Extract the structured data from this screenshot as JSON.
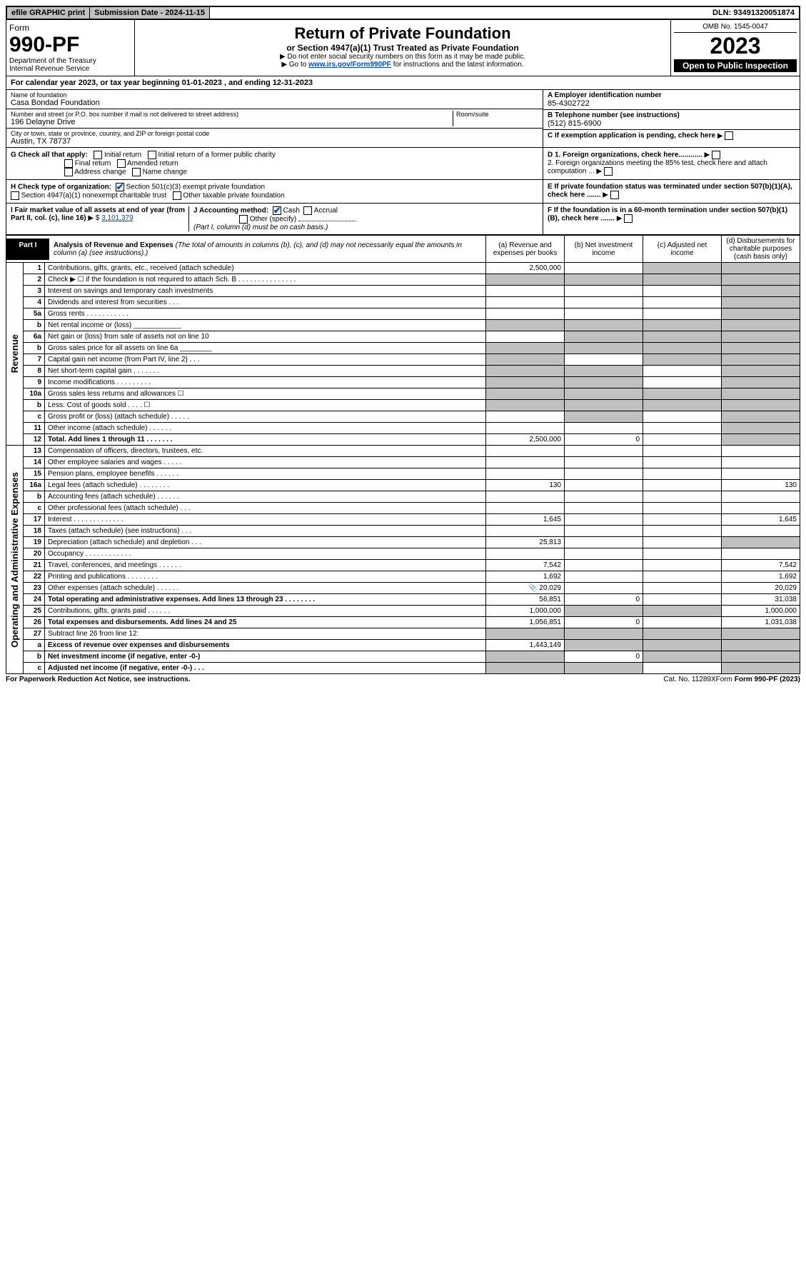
{
  "topbar": {
    "efile": "efile GRAPHIC print",
    "submission": "Submission Date - 2024-11-15",
    "dln": "DLN: 93491320051874"
  },
  "header": {
    "form_word": "Form",
    "form_no": "990-PF",
    "dept1": "Department of the Treasury",
    "dept2": "Internal Revenue Service",
    "title": "Return of Private Foundation",
    "subtitle": "or Section 4947(a)(1) Trust Treated as Private Foundation",
    "instr1": "▶ Do not enter social security numbers on this form as it may be made public.",
    "instr2_pre": "▶ Go to ",
    "instr2_link": "www.irs.gov/Form990PF",
    "instr2_post": " for instructions and the latest information.",
    "omb": "OMB No. 1545-0047",
    "year": "2023",
    "open": "Open to Public Inspection"
  },
  "cal_year": "For calendar year 2023, or tax year beginning 01-01-2023              , and ending 12-31-2023",
  "idblock": {
    "name_label": "Name of foundation",
    "name": "Casa Bondad Foundation",
    "addr_label": "Number and street (or P.O. box number if mail is not delivered to street address)",
    "addr": "196 Delayne Drive",
    "room_label": "Room/suite",
    "city_label": "City or town, state or province, country, and ZIP or foreign postal code",
    "city": "Austin, TX  78737",
    "a_label": "A Employer identification number",
    "a_val": "85-4302722",
    "b_label": "B Telephone number (see instructions)",
    "b_val": "(512) 815-6900",
    "c_label": "C If exemption application is pending, check here",
    "d1": "D 1. Foreign organizations, check here............",
    "d2": "2. Foreign organizations meeting the 85% test, check here and attach computation ...",
    "e": "E  If private foundation status was terminated under section 507(b)(1)(A), check here .......",
    "f": "F  If the foundation is in a 60-month termination under section 507(b)(1)(B), check here .......",
    "g_label": "G Check all that apply:",
    "g_opts": [
      "Initial return",
      "Initial return of a former public charity",
      "Final return",
      "Amended return",
      "Address change",
      "Name change"
    ],
    "h_label": "H Check type of organization:",
    "h_opts": [
      "Section 501(c)(3) exempt private foundation",
      "Section 4947(a)(1) nonexempt charitable trust",
      "Other taxable private foundation"
    ],
    "i_label": "I Fair market value of all assets at end of year (from Part II, col. (c), line 16)",
    "i_val": "3,101,379",
    "j_label": "J Accounting method:",
    "j_opts": [
      "Cash",
      "Accrual",
      "Other (specify)"
    ],
    "j_note": "(Part I, column (d) must be on cash basis.)"
  },
  "part1": {
    "tag": "Part I",
    "title": "Analysis of Revenue and Expenses",
    "title_note": "(The total of amounts in columns (b), (c), and (d) may not necessarily equal the amounts in column (a) (see instructions).)",
    "col_a": "(a)   Revenue and expenses per books",
    "col_b": "(b)   Net investment income",
    "col_c": "(c)   Adjusted net income",
    "col_d": "(d)   Disbursements for charitable purposes (cash basis only)"
  },
  "sections": {
    "revenue": "Revenue",
    "expenses": "Operating and Administrative Expenses"
  },
  "rows": [
    {
      "n": "1",
      "d": "Contributions, gifts, grants, etc., received (attach schedule)",
      "a": "2,500,000",
      "b": "",
      "c": "",
      "dd": "",
      "gb": false,
      "gc": true,
      "gd": true
    },
    {
      "n": "2",
      "d": "Check ▶ ☐ if the foundation is not required to attach Sch. B    .  .  .  .  .  .  .  .  .  .  .  .  .  .  .",
      "a": "",
      "b": "",
      "c": "",
      "dd": "",
      "ga": true,
      "gb": true,
      "gc": true,
      "gd": true
    },
    {
      "n": "3",
      "d": "Interest on savings and temporary cash investments",
      "a": "",
      "b": "",
      "c": "",
      "dd": "",
      "gd": true
    },
    {
      "n": "4",
      "d": "Dividends and interest from securities    .   .   .",
      "a": "",
      "b": "",
      "c": "",
      "dd": "",
      "gd": true
    },
    {
      "n": "5a",
      "d": "Gross rents    .   .   .   .   .   .   .   .   .   .   .",
      "a": "",
      "b": "",
      "c": "",
      "dd": "",
      "gd": true
    },
    {
      "n": "b",
      "d": "Net rental income or (loss)   ____________",
      "a": "",
      "b": "",
      "c": "",
      "dd": "",
      "ga": true,
      "gb": true,
      "gc": true,
      "gd": true
    },
    {
      "n": "6a",
      "d": "Net gain or (loss) from sale of assets not on line 10",
      "a": "",
      "b": "",
      "c": "",
      "dd": "",
      "gb": true,
      "gc": true,
      "gd": true
    },
    {
      "n": "b",
      "d": "Gross sales price for all assets on line 6a ________",
      "a": "",
      "b": "",
      "c": "",
      "dd": "",
      "ga": true,
      "gb": true,
      "gc": true,
      "gd": true
    },
    {
      "n": "7",
      "d": "Capital gain net income (from Part IV, line 2)   .   .   .",
      "a": "",
      "b": "",
      "c": "",
      "dd": "",
      "ga": true,
      "gc": true,
      "gd": true
    },
    {
      "n": "8",
      "d": "Net short-term capital gain   .   .   .   .   .   .   .",
      "a": "",
      "b": "",
      "c": "",
      "dd": "",
      "ga": true,
      "gb": true,
      "gd": true
    },
    {
      "n": "9",
      "d": "Income modifications  .   .   .   .   .   .   .   .   .",
      "a": "",
      "b": "",
      "c": "",
      "dd": "",
      "ga": true,
      "gb": true,
      "gd": true
    },
    {
      "n": "10a",
      "d": "Gross sales less returns and allowances  ☐",
      "a": "",
      "b": "",
      "c": "",
      "dd": "",
      "ga": true,
      "gb": true,
      "gc": true,
      "gd": true
    },
    {
      "n": "b",
      "d": "Less: Cost of goods sold    .   .   .   .   ☐",
      "a": "",
      "b": "",
      "c": "",
      "dd": "",
      "ga": true,
      "gb": true,
      "gc": true,
      "gd": true
    },
    {
      "n": "c",
      "d": "Gross profit or (loss) (attach schedule)   .   .   .   .   .",
      "a": "",
      "b": "",
      "c": "",
      "dd": "",
      "gb": true,
      "gd": true
    },
    {
      "n": "11",
      "d": "Other income (attach schedule)   .   .   .   .   .   .",
      "a": "",
      "b": "",
      "c": "",
      "dd": "",
      "gd": true
    },
    {
      "n": "12",
      "d": "Total. Add lines 1 through 11   .   .   .   .   .   .   .",
      "a": "2,500,000",
      "b": "0",
      "c": "",
      "dd": "",
      "bold": true,
      "gd": true
    },
    {
      "n": "13",
      "d": "Compensation of officers, directors, trustees, etc.",
      "a": "",
      "b": "",
      "c": "",
      "dd": ""
    },
    {
      "n": "14",
      "d": "Other employee salaries and wages   .   .   .   .   .",
      "a": "",
      "b": "",
      "c": "",
      "dd": ""
    },
    {
      "n": "15",
      "d": "Pension plans, employee benefits  .   .   .   .   .   .",
      "a": "",
      "b": "",
      "c": "",
      "dd": ""
    },
    {
      "n": "16a",
      "d": "Legal fees (attach schedule)  .   .   .   .   .   .   .   .",
      "a": "130",
      "b": "",
      "c": "",
      "dd": "130"
    },
    {
      "n": "b",
      "d": "Accounting fees (attach schedule)  .   .   .   .   .   .",
      "a": "",
      "b": "",
      "c": "",
      "dd": ""
    },
    {
      "n": "c",
      "d": "Other professional fees (attach schedule)   .   .   .",
      "a": "",
      "b": "",
      "c": "",
      "dd": ""
    },
    {
      "n": "17",
      "d": "Interest  .   .   .   .   .   .   .   .   .   .   .   .   .",
      "a": "1,645",
      "b": "",
      "c": "",
      "dd": "1,645"
    },
    {
      "n": "18",
      "d": "Taxes (attach schedule) (see instructions)   .   .   .",
      "a": "",
      "b": "",
      "c": "",
      "dd": ""
    },
    {
      "n": "19",
      "d": "Depreciation (attach schedule) and depletion   .   .   .",
      "a": "25,813",
      "b": "",
      "c": "",
      "dd": "",
      "gd": true
    },
    {
      "n": "20",
      "d": "Occupancy  .   .   .   .   .   .   .   .   .   .   .   .",
      "a": "",
      "b": "",
      "c": "",
      "dd": ""
    },
    {
      "n": "21",
      "d": "Travel, conferences, and meetings  .   .   .   .   .   .",
      "a": "7,542",
      "b": "",
      "c": "",
      "dd": "7,542"
    },
    {
      "n": "22",
      "d": "Printing and publications  .   .   .   .   .   .   .   .",
      "a": "1,692",
      "b": "",
      "c": "",
      "dd": "1,692"
    },
    {
      "n": "23",
      "d": "Other expenses (attach schedule)  .   .   .   .   .   .",
      "a": "20,029",
      "b": "",
      "c": "",
      "dd": "20,029",
      "icon": true
    },
    {
      "n": "24",
      "d": "Total operating and administrative expenses. Add lines 13 through 23   .   .   .   .   .   .   .   .",
      "a": "56,851",
      "b": "0",
      "c": "",
      "dd": "31,038",
      "bold": true
    },
    {
      "n": "25",
      "d": "Contributions, gifts, grants paid    .   .   .   .   .   .",
      "a": "1,000,000",
      "b": "",
      "c": "",
      "dd": "1,000,000",
      "gb": true,
      "gc": true
    },
    {
      "n": "26",
      "d": "Total expenses and disbursements. Add lines 24 and 25",
      "a": "1,056,851",
      "b": "0",
      "c": "",
      "dd": "1,031,038",
      "bold": true
    },
    {
      "n": "27",
      "d": "Subtract line 26 from line 12:",
      "a": "",
      "b": "",
      "c": "",
      "dd": "",
      "ga": true,
      "gb": true,
      "gc": true,
      "gd": true
    },
    {
      "n": "a",
      "d": "Excess of revenue over expenses and disbursements",
      "a": "1,443,149",
      "b": "",
      "c": "",
      "dd": "",
      "bold": true,
      "gb": true,
      "gc": true,
      "gd": true
    },
    {
      "n": "b",
      "d": "Net investment income (if negative, enter -0-)",
      "a": "",
      "b": "0",
      "c": "",
      "dd": "",
      "bold": true,
      "ga": true,
      "gc": true,
      "gd": true
    },
    {
      "n": "c",
      "d": "Adjusted net income (if negative, enter -0-)   .   .   .",
      "a": "",
      "b": "",
      "c": "",
      "dd": "",
      "bold": true,
      "ga": true,
      "gb": true,
      "gd": true
    }
  ],
  "footer": {
    "left": "For Paperwork Reduction Act Notice, see instructions.",
    "mid": "Cat. No. 11289X",
    "right": "Form 990-PF (2023)"
  },
  "colors": {
    "grey": "#c0c0c0",
    "link": "#0b4da2"
  }
}
